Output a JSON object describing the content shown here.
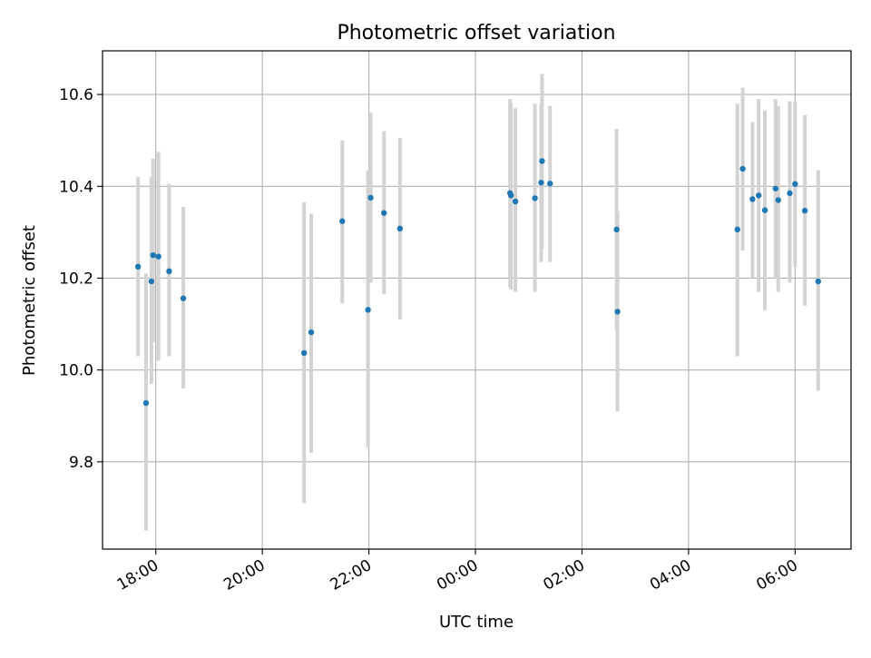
{
  "chart_data": {
    "type": "scatter",
    "title": "Photometric offset variation",
    "xlabel": "UTC time",
    "ylabel": "Photometric offset",
    "x_axis_type": "time",
    "x_start_label": "17:00",
    "xlim_hours": [
      17.0,
      31.05
    ],
    "ylim": [
      9.61,
      10.695
    ],
    "xticks": [
      {
        "hours": 18,
        "label": "18:00"
      },
      {
        "hours": 20,
        "label": "20:00"
      },
      {
        "hours": 22,
        "label": "22:00"
      },
      {
        "hours": 24,
        "label": "00:00"
      },
      {
        "hours": 26,
        "label": "02:00"
      },
      {
        "hours": 28,
        "label": "04:00"
      },
      {
        "hours": 30,
        "label": "06:00"
      }
    ],
    "yticks": [
      {
        "value": 9.8,
        "label": "9.8"
      },
      {
        "value": 10.0,
        "label": "10.0"
      },
      {
        "value": 10.2,
        "label": "10.2"
      },
      {
        "value": 10.4,
        "label": "10.4"
      },
      {
        "value": 10.6,
        "label": "10.6"
      }
    ],
    "grid": true,
    "marker_color": "#1f77b4",
    "errorbar_color": "#d3d3d3",
    "points": [
      {
        "t": "17:40",
        "y": 10.225,
        "lo": 10.03,
        "hi": 10.42
      },
      {
        "t": "17:49",
        "y": 9.928,
        "lo": 9.65,
        "hi": 10.21
      },
      {
        "t": "17:55",
        "y": 10.193,
        "lo": 9.97,
        "hi": 10.42
      },
      {
        "t": "17:57",
        "y": 10.25,
        "lo": 10.06,
        "hi": 10.46
      },
      {
        "t": "18:03",
        "y": 10.247,
        "lo": 10.02,
        "hi": 10.475
      },
      {
        "t": "18:15",
        "y": 10.215,
        "lo": 10.03,
        "hi": 10.405
      },
      {
        "t": "18:31",
        "y": 10.156,
        "lo": 9.96,
        "hi": 10.355
      },
      {
        "t": "20:47",
        "y": 10.037,
        "lo": 9.71,
        "hi": 10.365
      },
      {
        "t": "20:55",
        "y": 10.082,
        "lo": 9.82,
        "hi": 10.34
      },
      {
        "t": "21:30",
        "y": 10.324,
        "lo": 10.145,
        "hi": 10.5
      },
      {
        "t": "21:59",
        "y": 10.131,
        "lo": 9.83,
        "hi": 10.435
      },
      {
        "t": "22:02",
        "y": 10.375,
        "lo": 10.19,
        "hi": 10.56
      },
      {
        "t": "22:17",
        "y": 10.342,
        "lo": 10.165,
        "hi": 10.52
      },
      {
        "t": "22:35",
        "y": 10.308,
        "lo": 10.11,
        "hi": 10.505
      },
      {
        "t": "00:39",
        "y": 10.385,
        "lo": 10.18,
        "hi": 10.59
      },
      {
        "t": "00:40",
        "y": 10.38,
        "lo": 10.175,
        "hi": 10.58
      },
      {
        "t": "00:45",
        "y": 10.367,
        "lo": 10.17,
        "hi": 10.57
      },
      {
        "t": "01:07",
        "y": 10.374,
        "lo": 10.17,
        "hi": 10.58
      },
      {
        "t": "01:14",
        "y": 10.408,
        "lo": 10.235,
        "hi": 10.58
      },
      {
        "t": "01:15",
        "y": 10.455,
        "lo": 10.265,
        "hi": 10.645
      },
      {
        "t": "01:24",
        "y": 10.406,
        "lo": 10.235,
        "hi": 10.575
      },
      {
        "t": "02:39",
        "y": 10.306,
        "lo": 10.085,
        "hi": 10.525
      },
      {
        "t": "02:40",
        "y": 10.127,
        "lo": 9.91,
        "hi": 10.345
      },
      {
        "t": "04:55",
        "y": 10.306,
        "lo": 10.03,
        "hi": 10.58
      },
      {
        "t": "05:01",
        "y": 10.438,
        "lo": 10.26,
        "hi": 10.615
      },
      {
        "t": "05:12",
        "y": 10.372,
        "lo": 10.2,
        "hi": 10.54
      },
      {
        "t": "05:19",
        "y": 10.38,
        "lo": 10.17,
        "hi": 10.59
      },
      {
        "t": "05:26",
        "y": 10.348,
        "lo": 10.13,
        "hi": 10.565
      },
      {
        "t": "05:38",
        "y": 10.395,
        "lo": 10.2,
        "hi": 10.59
      },
      {
        "t": "05:41",
        "y": 10.37,
        "lo": 10.17,
        "hi": 10.575
      },
      {
        "t": "05:54",
        "y": 10.385,
        "lo": 10.19,
        "hi": 10.585
      },
      {
        "t": "06:00",
        "y": 10.405,
        "lo": 10.225,
        "hi": 10.585
      },
      {
        "t": "06:11",
        "y": 10.347,
        "lo": 10.14,
        "hi": 10.555
      },
      {
        "t": "06:26",
        "y": 10.193,
        "lo": 9.955,
        "hi": 10.435
      }
    ]
  }
}
